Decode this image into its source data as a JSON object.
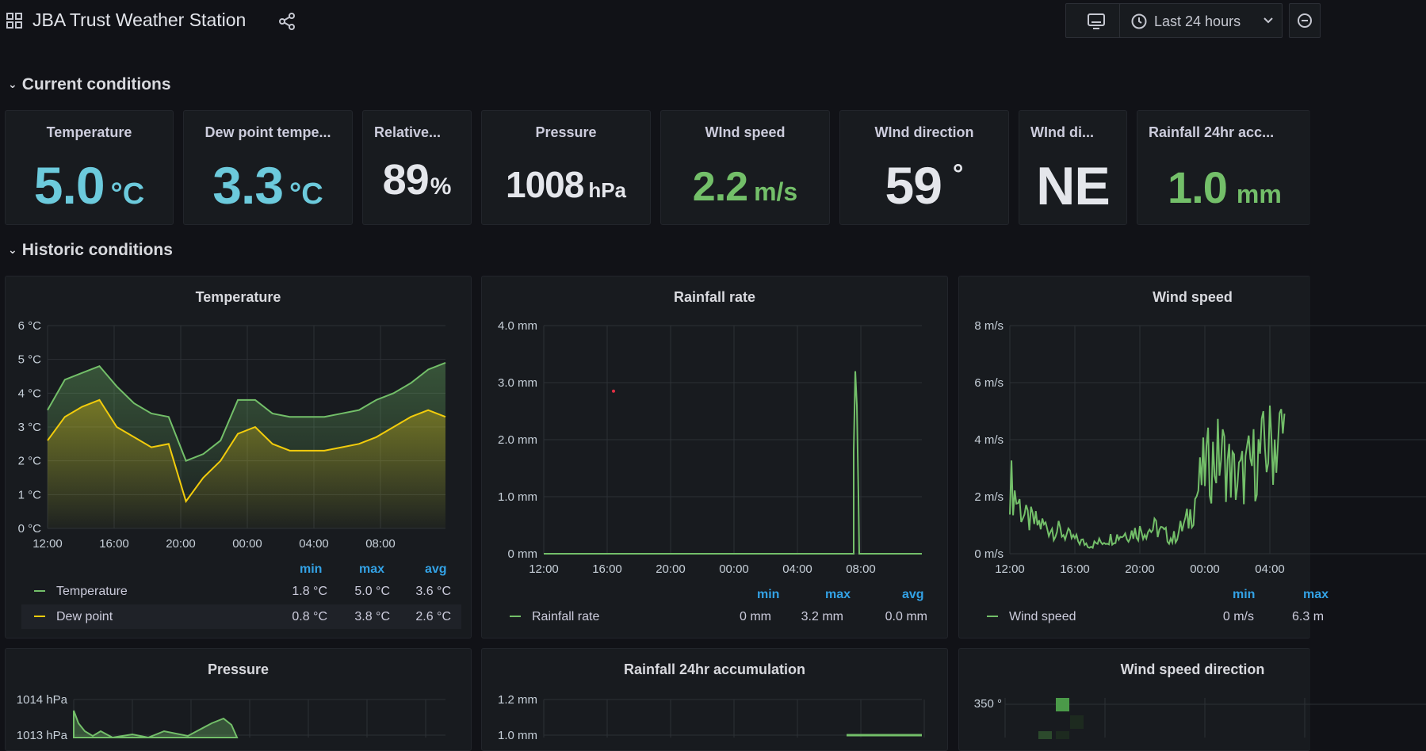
{
  "header": {
    "title": "JBA Trust Weather Station",
    "time_range": "Last 24 hours"
  },
  "rows": {
    "current": "Current conditions",
    "historic": "Historic conditions"
  },
  "colors": {
    "blue": "#6ccadc",
    "green": "#73bf69",
    "yellow": "#f2cc0c",
    "white": "#e4e6eb",
    "legend_header": "#33a2e5"
  },
  "stats": [
    {
      "title": "Temperature",
      "value": "5.0",
      "unit": "°C",
      "color": "#6ccadc"
    },
    {
      "title": "Dew point tempe...",
      "value": "3.3",
      "unit": "°C",
      "color": "#6ccadc"
    },
    {
      "title": "Relative...",
      "value": "89",
      "unit": "%",
      "color": "#e4e6eb"
    },
    {
      "title": "Pressure",
      "value": "1008",
      "unit": "hPa",
      "color": "#e4e6eb"
    },
    {
      "title": "WInd speed",
      "value": "2.2",
      "unit": "m/s",
      "color": "#73bf69"
    },
    {
      "title": "WInd direction",
      "value": "59",
      "unit": "°",
      "color": "#e4e6eb"
    },
    {
      "title": "WInd di...",
      "value": "NE",
      "unit": "",
      "color": "#e4e6eb"
    },
    {
      "title": "Rainfall 24hr acc...",
      "value": "1.0",
      "unit": "mm",
      "color": "#73bf69"
    }
  ],
  "legend_headers": {
    "min": "min",
    "max": "max",
    "avg": "avg"
  },
  "charts": {
    "temperature": {
      "title": "Temperature",
      "y_ticks": [
        "6 °C",
        "5 °C",
        "4 °C",
        "3 °C",
        "2 °C",
        "1 °C",
        "0 °C"
      ],
      "x_ticks": [
        "12:00",
        "16:00",
        "20:00",
        "00:00",
        "04:00",
        "08:00"
      ],
      "legend": [
        {
          "name": "Temperature",
          "min": "1.8 °C",
          "max": "5.0 °C",
          "avg": "3.6 °C"
        },
        {
          "name": "Dew point",
          "min": "0.8 °C",
          "max": "3.8 °C",
          "avg": "2.6 °C"
        }
      ]
    },
    "rainfall_rate": {
      "title": "Rainfall rate",
      "y_ticks": [
        "4.0 mm",
        "3.0 mm",
        "2.0 mm",
        "1.0 mm",
        "0 mm"
      ],
      "x_ticks": [
        "12:00",
        "16:00",
        "20:00",
        "00:00",
        "04:00",
        "08:00"
      ],
      "legend": [
        {
          "name": "Rainfall rate",
          "min": "0 mm",
          "max": "3.2 mm",
          "avg": "0.0 mm"
        }
      ]
    },
    "wind_speed": {
      "title": "Wind speed",
      "y_ticks": [
        "8 m/s",
        "6 m/s",
        "4 m/s",
        "2 m/s",
        "0 m/s"
      ],
      "x_ticks": [
        "12:00",
        "16:00",
        "20:00",
        "00:00",
        "04:00"
      ],
      "legend": [
        {
          "name": "Wind speed",
          "min": "0 m/s",
          "max": "6.3 m"
        }
      ]
    },
    "pressure": {
      "title": "Pressure",
      "y_ticks": [
        "1014 hPa",
        "1013 hPa"
      ]
    },
    "rainfall_24hr": {
      "title": "Rainfall 24hr accumulation",
      "y_ticks": [
        "1.2 mm",
        "1.0 mm"
      ]
    },
    "wind_direction": {
      "title": "Wind speed direction",
      "y_ticks": [
        "350 °"
      ]
    }
  },
  "chart_data": [
    {
      "type": "area",
      "title": "Temperature",
      "x": [
        "12:00",
        "13:00",
        "14:00",
        "15:00",
        "16:00",
        "17:00",
        "18:00",
        "19:00",
        "20:00",
        "21:00",
        "22:00",
        "23:00",
        "00:00",
        "01:00",
        "02:00",
        "03:00",
        "04:00",
        "05:00",
        "06:00",
        "07:00",
        "08:00",
        "09:00",
        "10:00",
        "11:00"
      ],
      "series": [
        {
          "name": "Temperature",
          "color": "#73bf69",
          "values": [
            3.5,
            4.4,
            4.6,
            4.8,
            4.2,
            3.7,
            3.4,
            3.3,
            2.0,
            2.2,
            2.6,
            3.8,
            3.8,
            3.4,
            3.3,
            3.3,
            3.3,
            3.4,
            3.5,
            3.8,
            4.0,
            4.3,
            4.7,
            4.9
          ]
        },
        {
          "name": "Dew point",
          "color": "#f2cc0c",
          "values": [
            2.6,
            3.3,
            3.6,
            3.8,
            3.0,
            2.7,
            2.4,
            2.5,
            0.8,
            1.5,
            2.0,
            2.8,
            3.0,
            2.5,
            2.3,
            2.3,
            2.3,
            2.4,
            2.5,
            2.7,
            3.0,
            3.3,
            3.5,
            3.3
          ]
        }
      ],
      "ylabel_unit": "°C",
      "ylim": [
        0,
        6
      ]
    },
    {
      "type": "line",
      "title": "Rainfall rate",
      "x": [
        "12:00",
        "16:00",
        "20:00",
        "00:00",
        "04:00",
        "07:20",
        "07:30",
        "07:40",
        "07:50",
        "08:00",
        "11:00"
      ],
      "series": [
        {
          "name": "Rainfall rate",
          "color": "#73bf69",
          "values": [
            0,
            0,
            0,
            0,
            0,
            0,
            3.2,
            1.8,
            0,
            0,
            0
          ]
        }
      ],
      "ylim": [
        0,
        4
      ]
    },
    {
      "type": "line",
      "title": "Wind speed",
      "x": [
        "12:00",
        "13:00",
        "14:00",
        "15:00",
        "16:00",
        "17:00",
        "18:00",
        "19:00",
        "20:00",
        "21:00",
        "22:00",
        "23:00",
        "00:00",
        "01:00",
        "02:00",
        "03:00",
        "04:00",
        "05:00"
      ],
      "series": [
        {
          "name": "Wind speed",
          "color": "#73bf69",
          "values": [
            2.5,
            1.2,
            1.0,
            0.8,
            0.5,
            0.3,
            0.5,
            0.7,
            0.8,
            0.9,
            0.5,
            1.2,
            3.0,
            3.5,
            2.5,
            3.2,
            3.8,
            4.3
          ]
        }
      ],
      "ylim": [
        0,
        8
      ]
    }
  ]
}
